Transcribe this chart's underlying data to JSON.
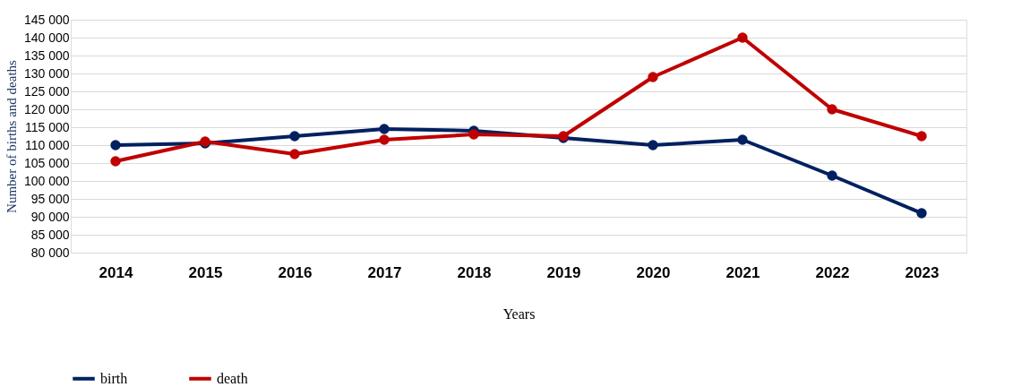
{
  "chart_data": {
    "type": "line",
    "xlabel": "Years",
    "ylabel": "Number of births and deaths",
    "categories": [
      "2014",
      "2015",
      "2016",
      "2017",
      "2018",
      "2019",
      "2020",
      "2021",
      "2022",
      "2023"
    ],
    "series": [
      {
        "name": "birth",
        "color": "#002060",
        "values": [
          110000,
          110500,
          112500,
          114500,
          114000,
          112000,
          110000,
          111500,
          101500,
          91000
        ]
      },
      {
        "name": "death",
        "color": "#c00000",
        "values": [
          105500,
          111000,
          107500,
          111500,
          113000,
          112500,
          129000,
          140000,
          120000,
          112500
        ]
      }
    ],
    "ylim": [
      80000,
      145000
    ],
    "yticks": [
      {
        "value": 80000,
        "label": "80 000"
      },
      {
        "value": 85000,
        "label": "85 000"
      },
      {
        "value": 90000,
        "label": "90 000"
      },
      {
        "value": 95000,
        "label": "95 000"
      },
      {
        "value": 100000,
        "label": "100 000"
      },
      {
        "value": 105000,
        "label": "105 000"
      },
      {
        "value": 110000,
        "label": "110 000"
      },
      {
        "value": 115000,
        "label": "115 000"
      },
      {
        "value": 120000,
        "label": "120 000"
      },
      {
        "value": 125000,
        "label": "125 000"
      },
      {
        "value": 130000,
        "label": "130 000"
      },
      {
        "value": 135000,
        "label": "135 000"
      },
      {
        "value": 140000,
        "label": "140 000"
      },
      {
        "value": 145000,
        "label": "145 000"
      }
    ],
    "grid": "y",
    "legend": "bottom",
    "marker": "circle",
    "line_style": "solid"
  }
}
